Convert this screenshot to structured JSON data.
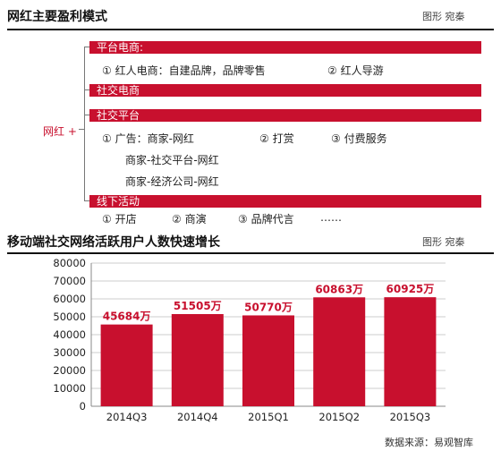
{
  "section1": {
    "title": "网红主要盈利模式",
    "credit": "图形 宛秦",
    "root_label": "网红 +",
    "branches": {
      "platform": {
        "label": "平台电商:",
        "items": [
          "① 红人电商：自建品牌，品牌零售",
          "② 红人导游"
        ]
      },
      "social_commerce": {
        "label": "社交电商"
      },
      "social_platform": {
        "label": "社交平台",
        "items": [
          "① 广告：商家-网红",
          "② 打赏",
          "③ 付费服务",
          "商家-社交平台-网红",
          "商家-经济公司-网红"
        ]
      },
      "offline": {
        "label": "线下活动",
        "items": [
          "① 开店",
          "② 商演",
          "③ 品牌代言",
          "……"
        ]
      }
    }
  },
  "section2": {
    "title": "移动端社交网络活跃用户人数快速增长",
    "credit": "图形 宛秦",
    "source": "数据来源：易观智库"
  },
  "colors": {
    "accent": "#c8102e",
    "bar": "#c8102e",
    "grid": "#cccccc"
  },
  "chart_data": {
    "type": "bar",
    "categories": [
      "2014Q3",
      "2014Q4",
      "2015Q1",
      "2015Q2",
      "2015Q3"
    ],
    "values": [
      45684,
      51505,
      50770,
      60863,
      60925
    ],
    "value_labels": [
      "45684万",
      "51505万",
      "50770万",
      "60863万",
      "60925万"
    ],
    "ylim": [
      0,
      80000
    ],
    "yticks": [
      0,
      10000,
      20000,
      30000,
      40000,
      50000,
      60000,
      70000,
      80000
    ],
    "grid": true
  }
}
